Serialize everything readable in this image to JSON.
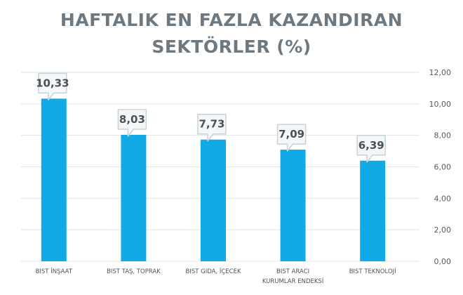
{
  "chart_data": {
    "type": "bar",
    "title_lines": [
      "HAFTALIK EN FAZLA KAZANDIRAN",
      "SEKTÖRLER (%)"
    ],
    "categories": [
      [
        "BIST İNŞAAT"
      ],
      [
        "BIST TAŞ, TOPRAK"
      ],
      [
        "BIST GIDA, İÇECEK"
      ],
      [
        "BIST ARACI",
        "KURUMLAR ENDEKSİ"
      ],
      [
        "BIST TEKNOLOJİ"
      ]
    ],
    "values": [
      10.33,
      8.03,
      7.73,
      7.09,
      6.39
    ],
    "data_labels": [
      "10,33",
      "8,03",
      "7,73",
      "7,09",
      "6,39"
    ],
    "y_ticks": [
      {
        "value": 0,
        "label": "0,00"
      },
      {
        "value": 2,
        "label": "2,00"
      },
      {
        "value": 4,
        "label": "4,00"
      },
      {
        "value": 6,
        "label": "6,00"
      },
      {
        "value": 8,
        "label": "8,00"
      },
      {
        "value": 10,
        "label": "10,00"
      },
      {
        "value": 12,
        "label": "12,00"
      }
    ],
    "ylim": [
      0,
      12
    ],
    "y_axis_position": "right",
    "grid": true,
    "colors": {
      "bar": "#11a9e6",
      "grid": "#e3e6e8",
      "callout_fill": "#f4f6f7",
      "callout_stroke": "#c6d3da"
    }
  }
}
